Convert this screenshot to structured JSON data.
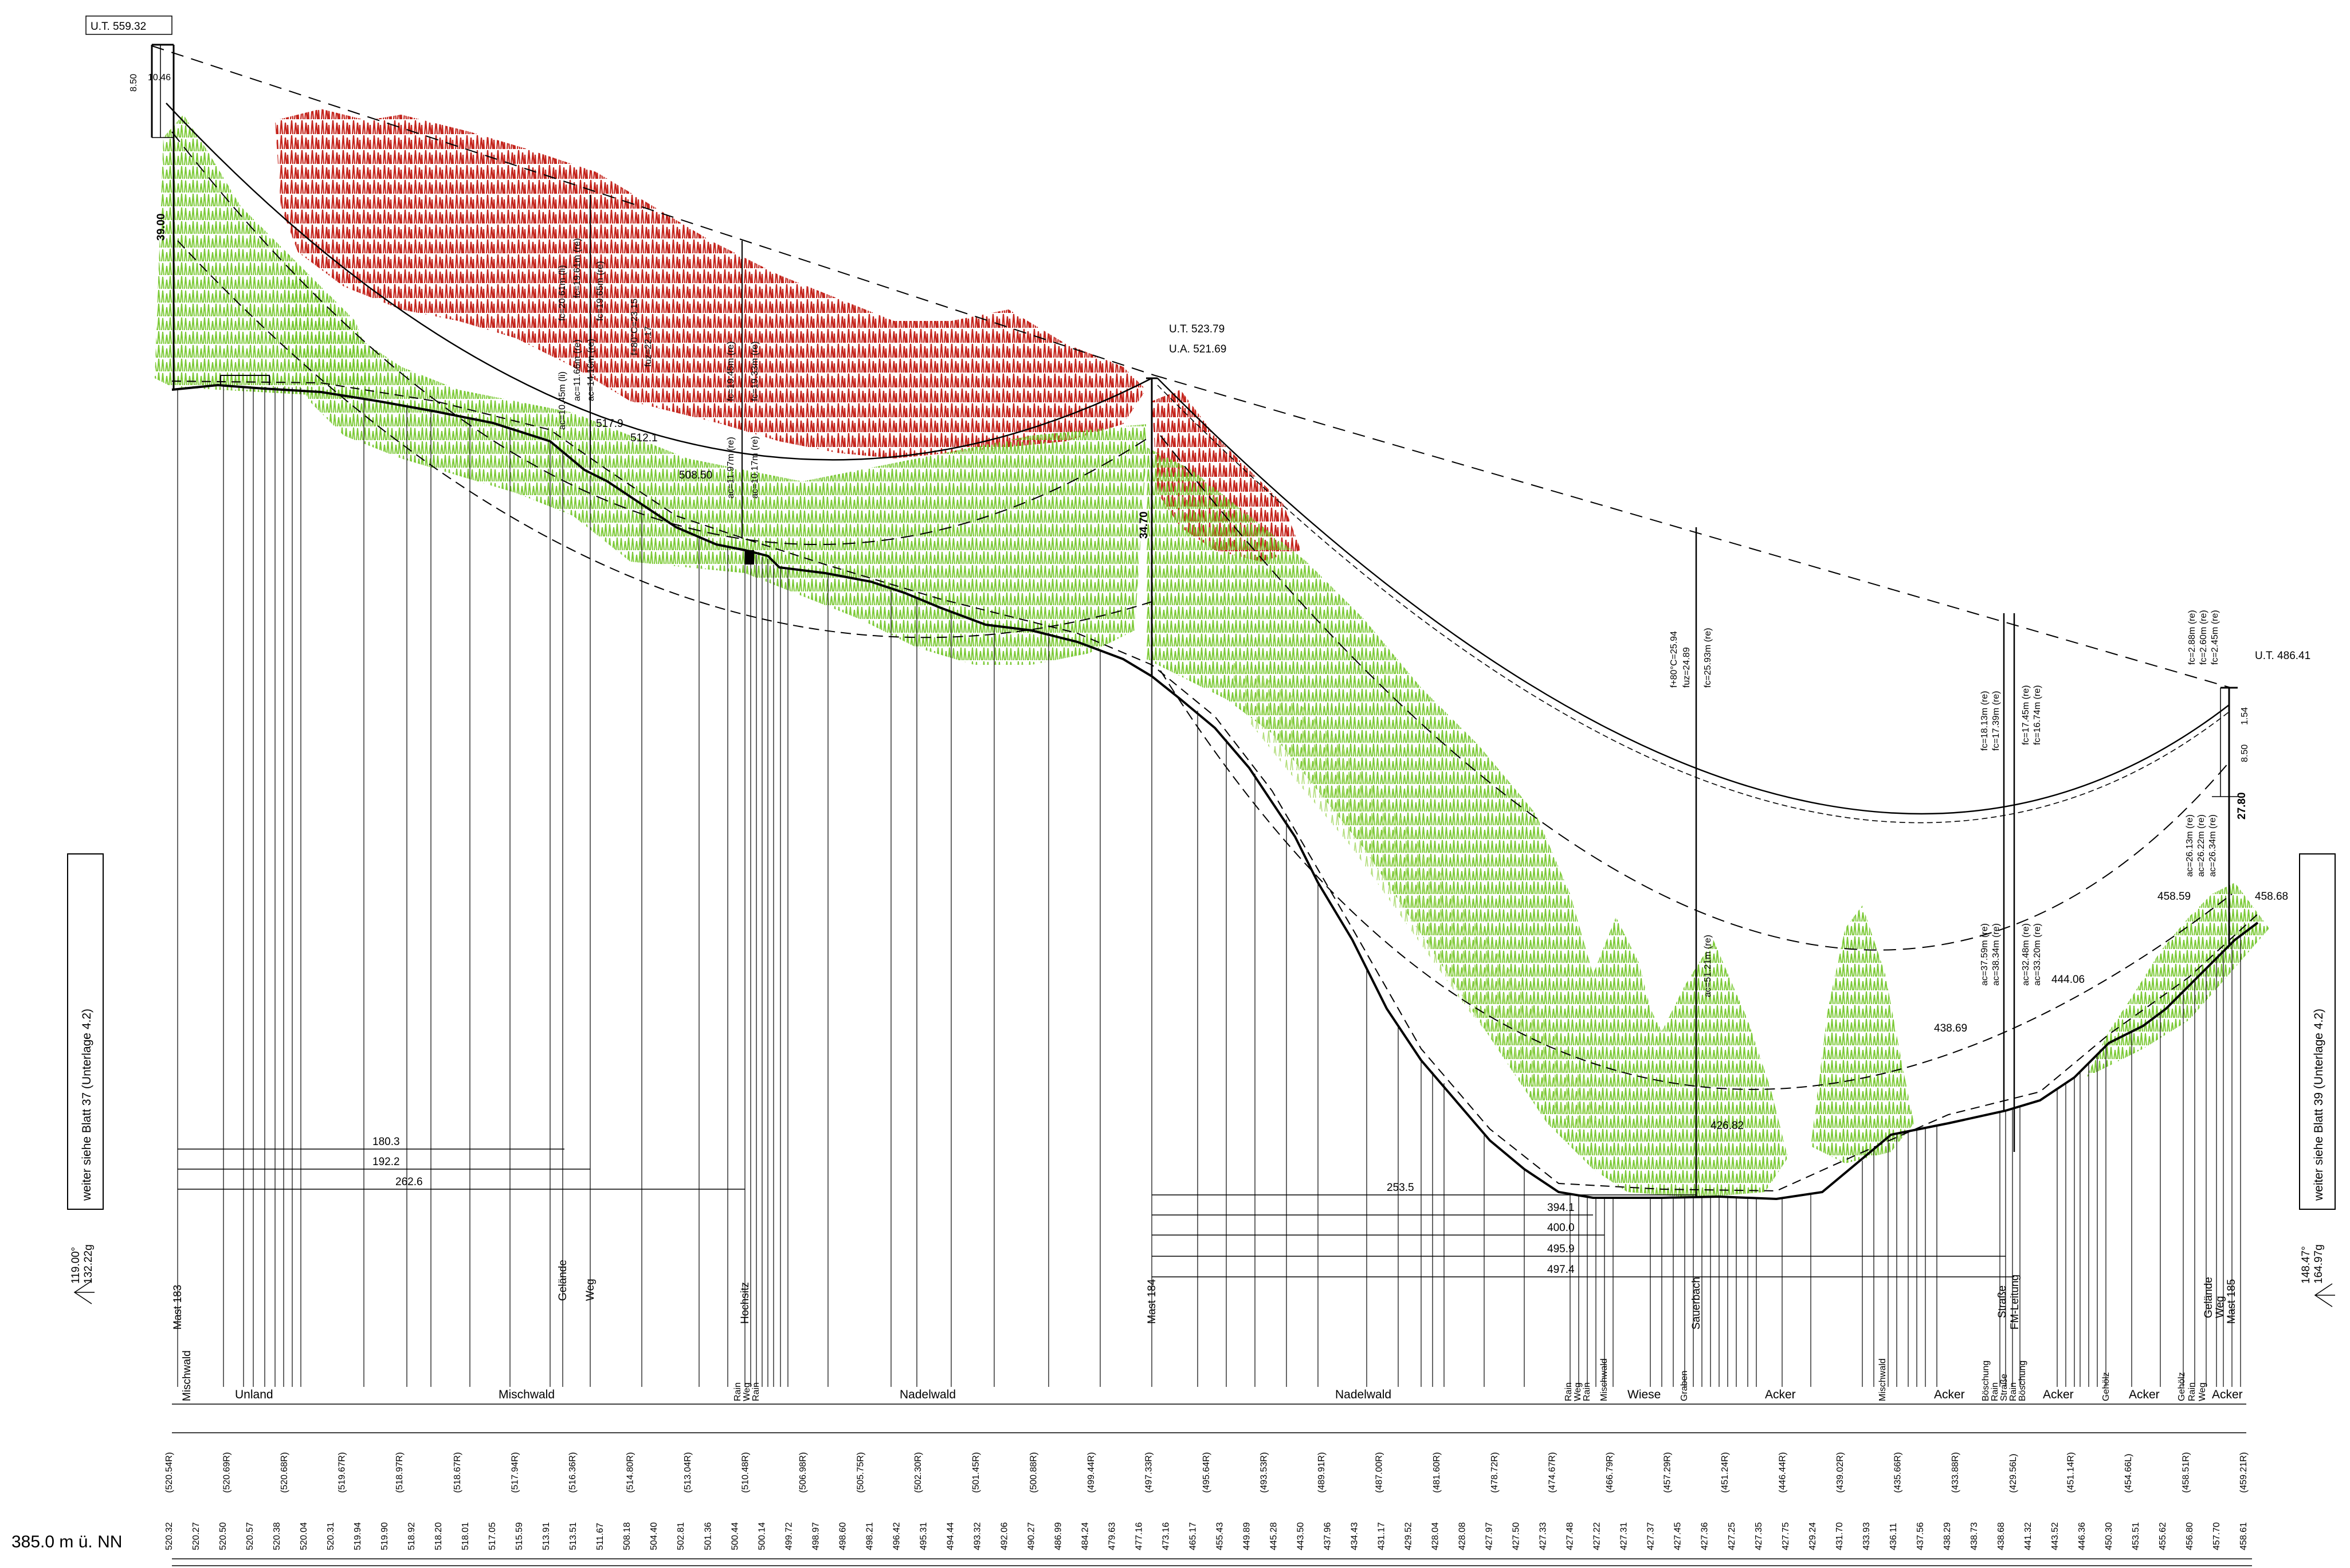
{
  "sheet": {
    "datum_label": "385.0 m ü. NN",
    "left_reference": "weiter siehe Blatt 37 (Unterlage 4.2)",
    "right_reference": "weiter siehe Blatt 39 (Unterlage 4.2)",
    "left_angle": [
      "119.00°",
      "132.22g"
    ],
    "right_angle": [
      "148.47°",
      "164.97g"
    ]
  },
  "towers": [
    {
      "name": "Mast 183",
      "ut": "U.T. 559.32",
      "height": "39.00",
      "top_dims": [
        "8.50",
        "10.46"
      ]
    },
    {
      "name": "Mast 184",
      "ut": "U.T. 523.79",
      "ua": "U.A. 521.69",
      "height": "34.70"
    },
    {
      "name": "Mast 185",
      "ut": "U.T. 486.41",
      "height": "27.80",
      "top_dims": [
        "8.50",
        "1.54"
      ]
    }
  ],
  "spot_heights": [
    "517.9",
    "512.1",
    "508.50",
    "426.82",
    "438.69",
    "444.06",
    "458.59",
    "458.68"
  ],
  "distances_left": [
    "180.3",
    "192.2",
    "262.6"
  ],
  "distances_right": [
    "253.5",
    "394.1",
    "400.0",
    "495.9",
    "497.4"
  ],
  "span1_labels": [
    "fc=20.61m (li)",
    "ac=10.45m (li)",
    "fc=19.61m (re)",
    "ac=11.66m (re)",
    "ac=14.16m (re)",
    "fc=19.65m (re)",
    "f+80°C=23.15",
    "fuz=22.17",
    "fc=19.45m (re)",
    "fc=19.33m (re)",
    "ac=11.97m (re)",
    "ac=10.17m (re)"
  ],
  "span2_labels": [
    "f+80°C=25.94",
    "fuz=24.89",
    "fc=25.93m (re)",
    "ac=51.21m (re)",
    "fc=18.13m (re)",
    "fc=17.39m (re)",
    "fc=17.45m (re)",
    "fc=16.74m (re)",
    "ac=37.59m (re)",
    "ac=38.34m (re)",
    "ac=32.48m (re)",
    "ac=33.20m (re)",
    "fc=2.88m (re)",
    "fc=2.60m (re)",
    "fc=2.45m (re)",
    "ac=26.13m (re)",
    "ac=26.22m (re)",
    "ac=26.34m (re)"
  ],
  "crossings": [
    "Gelände",
    "Weg",
    "Hochsitz",
    "Sauerbach",
    "Straße",
    "FM-Leitung",
    "Gelände",
    "Weg"
  ],
  "land_use": [
    "Mischwald",
    "Unland",
    "Mischwald",
    "Rain",
    "Weg",
    "Rain",
    "Nadelwald",
    "Nadelwald",
    "Rain",
    "Weg",
    "Rain",
    "Mischwald",
    "Wiese",
    "Graben",
    "Acker",
    "Mischwald",
    "Acker",
    "Böschung",
    "Rain",
    "Straße",
    "Rain",
    "Böschung",
    "Acker",
    "Gehölz",
    "Acker",
    "Gehölz",
    "Rain",
    "Weg",
    "Acker"
  ],
  "ground_elevations": [
    "520.32",
    "520.27",
    "520.50",
    "520.57",
    "520.38",
    "520.04",
    "520.31",
    "519.94",
    "519.90",
    "518.92",
    "518.20",
    "518.01",
    "517.05",
    "515.59",
    "513.91",
    "513.51",
    "511.67",
    "508.18",
    "504.40",
    "502.81",
    "501.36",
    "500.44",
    "500.14",
    "499.72",
    "498.97",
    "498.60",
    "498.21",
    "496.42",
    "495.31",
    "494.44",
    "493.32",
    "492.06",
    "490.27",
    "486.99",
    "484.24",
    "479.63",
    "477.16",
    "473.16",
    "465.17",
    "455.43",
    "449.89",
    "445.28",
    "443.50",
    "437.96",
    "434.43",
    "431.17",
    "429.52",
    "428.04",
    "428.08",
    "427.97",
    "427.50",
    "427.33",
    "427.48",
    "427.22",
    "427.31",
    "427.37",
    "427.45",
    "427.36",
    "427.25",
    "427.35",
    "427.75",
    "429.24",
    "431.70",
    "433.93",
    "436.11",
    "437.56",
    "438.29",
    "438.73",
    "438.68",
    "441.32",
    "443.52",
    "446.36",
    "450.30",
    "453.51",
    "455.62",
    "456.80",
    "457.70",
    "458.61"
  ],
  "elevation_notes": [
    "(520.54R)",
    "(520.69R)",
    "(520.68R)",
    "(519.67R)",
    "(518.97R)",
    "(518.67R)",
    "(517.94R)",
    "(516.36R)",
    "(514.80R)",
    "(513.04R)",
    "(510.48R)",
    "(506.98R)",
    "(505.75R)",
    "(502.30R)",
    "(501.45R)",
    "(500.88R)",
    "(499.44R)",
    "(497.33R)",
    "(495.64R)",
    "(493.53R)",
    "(489.91R)",
    "(487.00R)",
    "(481.60R)",
    "(478.72R)",
    "(474.67R)",
    "(466.79R)",
    "(457.29R)",
    "(451.24R)",
    "(446.44R)",
    "(439.02R)",
    "(435.66R)",
    "(433.88R)",
    "(429.56L)",
    "(451.14R)",
    "(454.66L)",
    "(458.51R)",
    "(459.21R)"
  ]
}
